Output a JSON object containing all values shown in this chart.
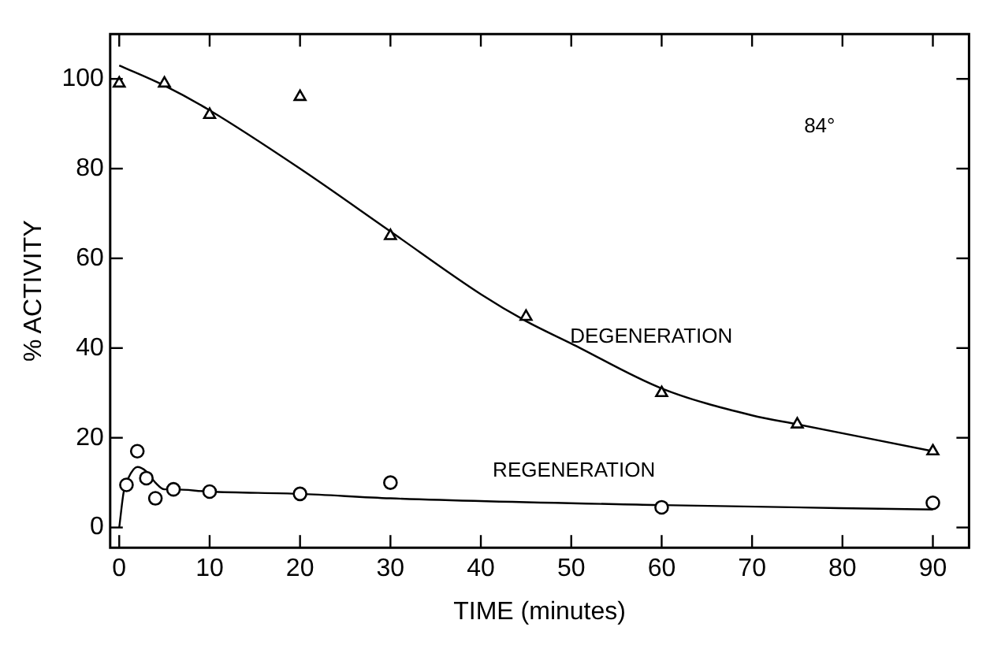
{
  "chart_data": {
    "type": "scatter",
    "xlabel": "TIME (minutes)",
    "ylabel": "% ACTIVITY",
    "xlim": [
      -1,
      94
    ],
    "ylim": [
      -4.5,
      110
    ],
    "xticks": [
      0,
      10,
      20,
      30,
      40,
      50,
      60,
      70,
      80,
      90
    ],
    "yticks": [
      0,
      20,
      40,
      60,
      80,
      100
    ],
    "legend": false,
    "annotations": [
      "84°",
      "DEGENERATION",
      "REGENERATION"
    ],
    "series": [
      {
        "marker": "triangle",
        "color": "#000000",
        "x": [
          0,
          5,
          10,
          20,
          30,
          45,
          60,
          75,
          90
        ],
        "values": [
          99,
          99,
          92,
          96,
          65,
          47,
          30,
          23,
          17
        ]
      },
      {
        "marker": "circle",
        "color": "#000000",
        "x": [
          0.8,
          2,
          3,
          4,
          6,
          10,
          20,
          30,
          60,
          90
        ],
        "values": [
          9.5,
          17,
          11,
          6.5,
          8.5,
          8,
          7.5,
          10,
          4.5,
          5.5
        ]
      },
      {
        "type": "line",
        "marker": "none",
        "color": "#000000",
        "x": [
          0,
          5,
          10,
          20,
          30,
          40,
          45,
          50,
          60,
          70,
          75,
          90
        ],
        "values": [
          103,
          98.5,
          93,
          80,
          66,
          52,
          46,
          41,
          31,
          25,
          23,
          17
        ]
      },
      {
        "type": "line",
        "marker": "none",
        "color": "#000000",
        "x": [
          0,
          0.5,
          1,
          2,
          3,
          4,
          5,
          6,
          10,
          20,
          30,
          60,
          90
        ],
        "values": [
          0,
          8,
          11,
          13.5,
          12.5,
          10,
          8.5,
          8.5,
          8,
          7.5,
          6.5,
          5,
          4
        ]
      }
    ]
  }
}
